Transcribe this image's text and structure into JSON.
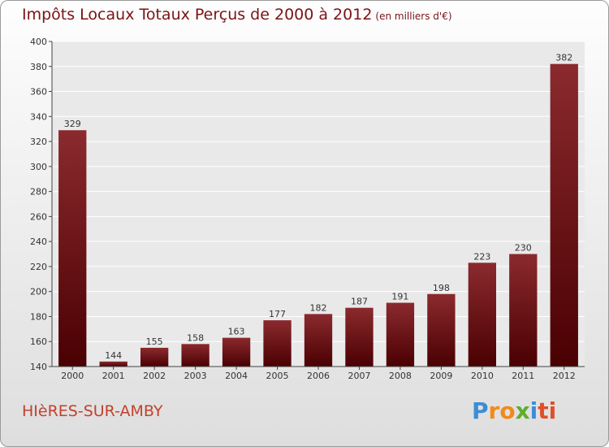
{
  "title": "Impôts Locaux Totaux Perçus de 2000 à 2012",
  "title_unit": "(en milliers d'€)",
  "commune": "HIèRES-SUR-AMBY",
  "logo": {
    "text": "Proxiti",
    "letters": [
      "P",
      "r",
      "o",
      "x",
      "i",
      "ti"
    ]
  },
  "colors": {
    "bar_top": "#8b2a2e",
    "bar_bottom": "#4a0002",
    "title": "#7a1316",
    "commune": "#c2402e"
  },
  "chart_data": {
    "type": "bar",
    "categories": [
      "2000",
      "2001",
      "2002",
      "2003",
      "2004",
      "2005",
      "2006",
      "2007",
      "2008",
      "2009",
      "2010",
      "2011",
      "2012"
    ],
    "values": [
      329,
      144,
      155,
      158,
      163,
      177,
      182,
      187,
      191,
      198,
      223,
      230,
      382
    ],
    "ylim": [
      140,
      400
    ],
    "yticks": [
      140,
      160,
      180,
      200,
      220,
      240,
      260,
      280,
      300,
      320,
      340,
      360,
      380,
      400
    ],
    "grid": true,
    "xlabel": "",
    "ylabel": ""
  }
}
